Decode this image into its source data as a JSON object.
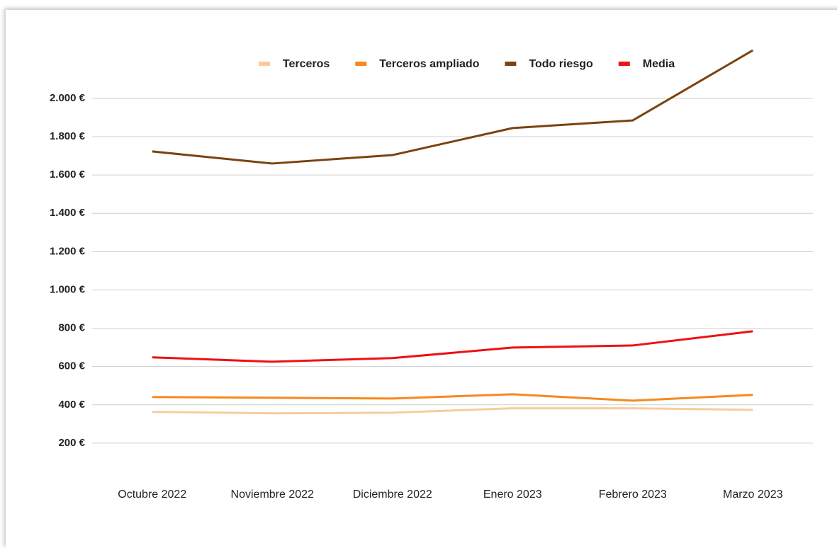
{
  "chart_data": {
    "type": "line",
    "categories": [
      "Octubre 2022",
      "Noviembre 2022",
      "Diciembre 2022",
      "Enero 2023",
      "Febrero 2023",
      "Marzo 2023"
    ],
    "series": [
      {
        "name": "Terceros",
        "color": "#f9cb9c",
        "values": [
          363,
          356,
          359,
          382,
          382,
          374
        ]
      },
      {
        "name": "Terceros ampliado",
        "color": "#f6891f",
        "values": [
          441,
          437,
          433,
          455,
          422,
          452
        ]
      },
      {
        "name": "Todo riesgo",
        "color": "#7b4310",
        "values": [
          1723,
          1660,
          1704,
          1845,
          1885,
          2251
        ]
      },
      {
        "name": "Media",
        "color": "#ee1111",
        "values": [
          648,
          625,
          644,
          699,
          710,
          784
        ]
      }
    ],
    "ylim": [
      0,
      2300
    ],
    "yticks": [
      {
        "value": 200,
        "label": "200 €"
      },
      {
        "value": 400,
        "label": "400 €"
      },
      {
        "value": 600,
        "label": "600 €"
      },
      {
        "value": 800,
        "label": "800 €"
      },
      {
        "value": 1000,
        "label": "1.000 €"
      },
      {
        "value": 1200,
        "label": "1.200 €"
      },
      {
        "value": 1400,
        "label": "1.400 €"
      },
      {
        "value": 1600,
        "label": "1.600 €"
      },
      {
        "value": 1800,
        "label": "1.800 €"
      },
      {
        "value": 2000,
        "label": "2.000 €"
      }
    ],
    "grid": true,
    "legend": "top"
  }
}
